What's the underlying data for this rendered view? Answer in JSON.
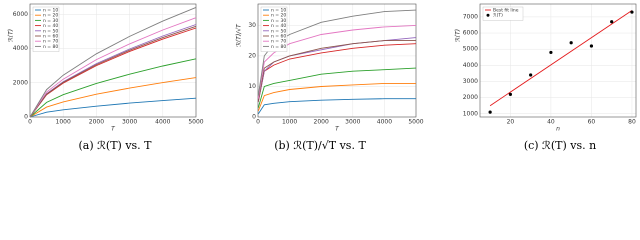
{
  "chart_data": [
    {
      "type": "line",
      "caption": "(a) ℛ(T) vs. T",
      "xlabel": "T",
      "ylabel": "ℛ(T)",
      "x": [
        0,
        500,
        1000,
        2000,
        3000,
        4000,
        5000
      ],
      "xlim": [
        0,
        5000
      ],
      "xticks": [
        0,
        1000,
        2000,
        3000,
        4000,
        5000
      ],
      "ylim": [
        0,
        6600
      ],
      "yticks": [
        0,
        2000,
        4000,
        6000
      ],
      "grid": true,
      "legend": "upper left",
      "series": [
        {
          "name": "n = 10",
          "color": "#1f77b4",
          "values": [
            0,
            280,
            420,
            630,
            810,
            960,
            1100
          ]
        },
        {
          "name": "n = 20",
          "color": "#ff7f0e",
          "values": [
            0,
            580,
            880,
            1330,
            1690,
            2010,
            2300
          ]
        },
        {
          "name": "n = 30",
          "color": "#2ca02c",
          "values": [
            0,
            850,
            1300,
            1960,
            2500,
            2980,
            3400
          ]
        },
        {
          "name": "n = 40",
          "color": "#d62728",
          "values": [
            0,
            1300,
            1980,
            3000,
            3830,
            4550,
            5200
          ]
        },
        {
          "name": "n = 50",
          "color": "#9467bd",
          "values": [
            0,
            1360,
            2060,
            3120,
            3970,
            4730,
            5400
          ]
        },
        {
          "name": "n = 60",
          "color": "#8c564b",
          "values": [
            0,
            1330,
            2020,
            3060,
            3900,
            4640,
            5300
          ]
        },
        {
          "name": "n = 70",
          "color": "#e377c2",
          "values": [
            0,
            1460,
            2210,
            3350,
            4270,
            5080,
            5800
          ]
        },
        {
          "name": "n = 80",
          "color": "#7f7f7f",
          "values": [
            0,
            1600,
            2440,
            3690,
            4710,
            5600,
            6400
          ]
        }
      ]
    },
    {
      "type": "line",
      "caption": "(b) ℛ(T)/√T vs. T",
      "xlabel": "T",
      "ylabel": "ℛ(T)/√T",
      "x": [
        10,
        200,
        500,
        1000,
        2000,
        3000,
        4000,
        5000
      ],
      "xlim": [
        0,
        5000
      ],
      "xticks": [
        0,
        1000,
        2000,
        3000,
        4000,
        5000
      ],
      "ylim": [
        0,
        37
      ],
      "yticks": [
        0,
        10,
        20,
        30
      ],
      "grid": true,
      "legend": "upper left",
      "series": [
        {
          "name": "n = 10",
          "color": "#1f77b4",
          "values": [
            1,
            4,
            4.5,
            5,
            5.5,
            5.8,
            6,
            6
          ]
        },
        {
          "name": "n = 20",
          "color": "#ff7f0e",
          "values": [
            2,
            7,
            8,
            9,
            10,
            10.5,
            11,
            11
          ]
        },
        {
          "name": "n = 30",
          "color": "#2ca02c",
          "values": [
            3,
            10,
            11,
            12,
            14,
            15,
            15.5,
            16
          ]
        },
        {
          "name": "n = 40",
          "color": "#d62728",
          "values": [
            5,
            15,
            17,
            19,
            21,
            22.5,
            23.5,
            24
          ]
        },
        {
          "name": "n = 50",
          "color": "#9467bd",
          "values": [
            5,
            15,
            18,
            20,
            22,
            24,
            25,
            26
          ]
        },
        {
          "name": "n = 60",
          "color": "#8c564b",
          "values": [
            5,
            16,
            18,
            20,
            22.5,
            24,
            25,
            25
          ]
        },
        {
          "name": "n = 70",
          "color": "#e377c2",
          "values": [
            6,
            18,
            21,
            24,
            27,
            28.5,
            29.5,
            30
          ]
        },
        {
          "name": "n = 80",
          "color": "#7f7f7f",
          "values": [
            7,
            20,
            24,
            27,
            31,
            33,
            34.5,
            35
          ]
        }
      ]
    },
    {
      "type": "scatter",
      "caption": "(c) ℛ(T) vs. n",
      "xlabel": "n",
      "ylabel": "ℛ(T)",
      "xlim": [
        5,
        82
      ],
      "xticks": [
        20,
        40,
        60,
        80
      ],
      "ylim": [
        800,
        7800
      ],
      "yticks": [
        1000,
        2000,
        3000,
        4000,
        5000,
        6000,
        7000
      ],
      "grid": true,
      "legend": "upper left",
      "series": [
        {
          "name": "Best fit line",
          "type": "line",
          "color": "#e41a1c",
          "x": [
            10,
            80
          ],
          "values": [
            1500,
            7400
          ]
        },
        {
          "name": "ℛ(T)",
          "type": "scatter",
          "color": "#000000",
          "x": [
            10,
            20,
            30,
            40,
            50,
            60,
            70,
            80
          ],
          "values": [
            1100,
            2200,
            3400,
            4800,
            5400,
            5200,
            6700,
            7300
          ]
        }
      ]
    }
  ]
}
